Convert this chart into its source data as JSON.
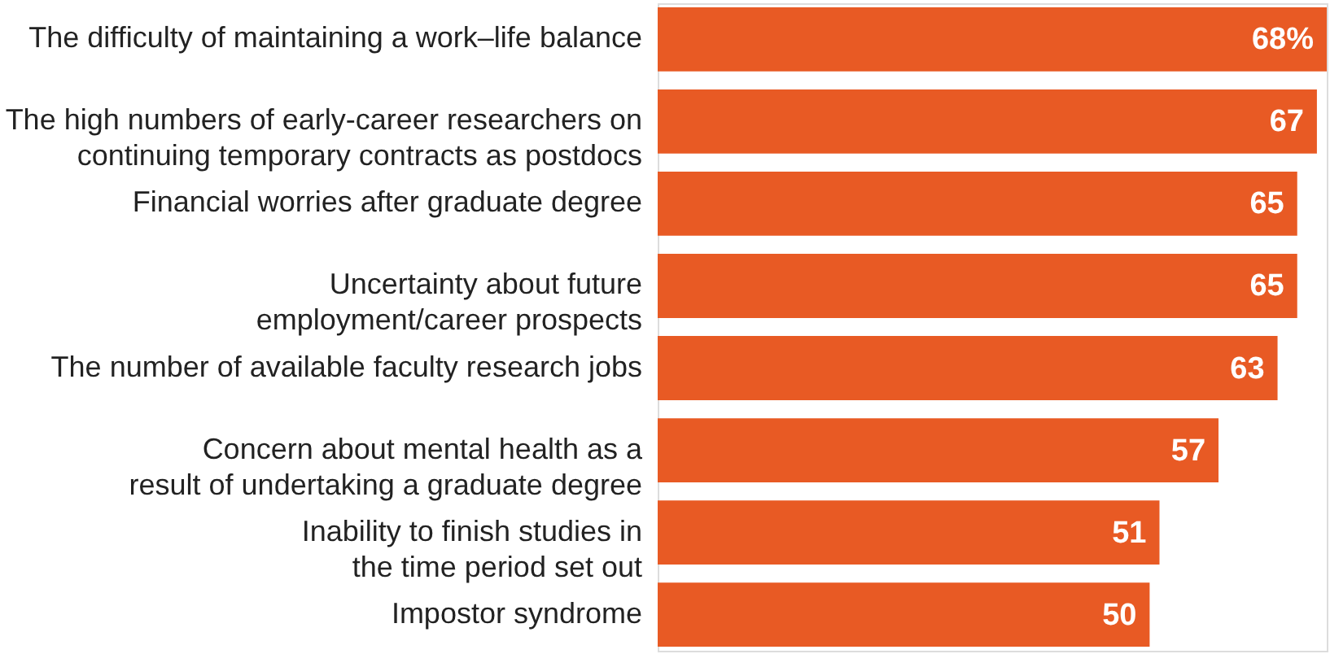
{
  "chart_data": {
    "type": "bar",
    "orientation": "horizontal",
    "categories": [
      "The difficulty of maintaining a work–life balance",
      "The high numbers of early-career researchers on\ncontinuing temporary contracts as postdocs",
      "Financial worries after graduate degree",
      "Uncertainty about future\nemployment/career prospects",
      "The number of available faculty research jobs",
      "Concern about mental health as a\nresult of undertaking a graduate degree",
      "Inability to finish studies in\nthe time period set out",
      "Impostor syndrome"
    ],
    "values": [
      68,
      67,
      65,
      65,
      63,
      57,
      51,
      50
    ],
    "value_labels": [
      "68%",
      "67",
      "65",
      "65",
      "63",
      "57",
      "51",
      "50"
    ],
    "color": "#e85a24"
  }
}
